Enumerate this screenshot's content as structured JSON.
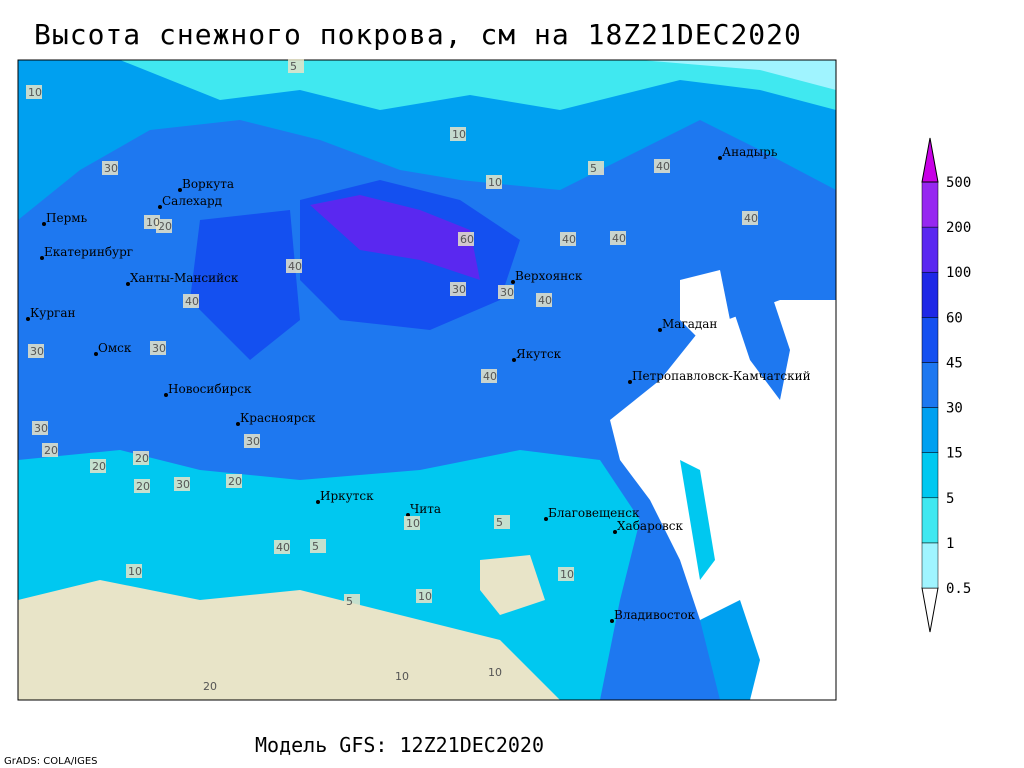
{
  "title": "Высота снежного покрова, см на 18Z21DEC2020",
  "footer": "Модель GFS: 12Z21DEC2020",
  "credit": "GrADS: COLA/IGES",
  "legend": {
    "levels": [
      0.5,
      1,
      5,
      15,
      30,
      45,
      60,
      100,
      200,
      500
    ],
    "colors": [
      "#ffffff",
      "#a0f4ff",
      "#40e8f0",
      "#00c8f0",
      "#00a0f0",
      "#1e78f0",
      "#1450f0",
      "#1e28e6",
      "#5a28f0",
      "#9628f0",
      "#c800e6"
    ]
  },
  "cities": [
    "Анадырь",
    "Воркута",
    "Салехард",
    "Пермь",
    "Екатеринбург",
    "Ханты-Мансийск",
    "Курган",
    "Омск",
    "Новосибирск",
    "Красноярск",
    "Иркутск",
    "Чита",
    "Верхоянск",
    "Якутск",
    "Магадан",
    "Петропавловск-Камчатский",
    "Благовещенск",
    "Хабаровск",
    "Владивосток"
  ],
  "contour_labels": [
    10,
    5,
    10,
    5,
    10,
    30,
    20,
    10,
    40,
    40,
    40,
    60,
    30,
    30,
    40,
    40,
    40,
    40,
    30,
    30,
    40,
    30,
    20,
    30,
    20,
    20,
    20,
    30,
    20,
    10,
    10,
    5,
    10,
    5,
    10,
    5,
    10,
    20,
    40,
    10
  ]
}
